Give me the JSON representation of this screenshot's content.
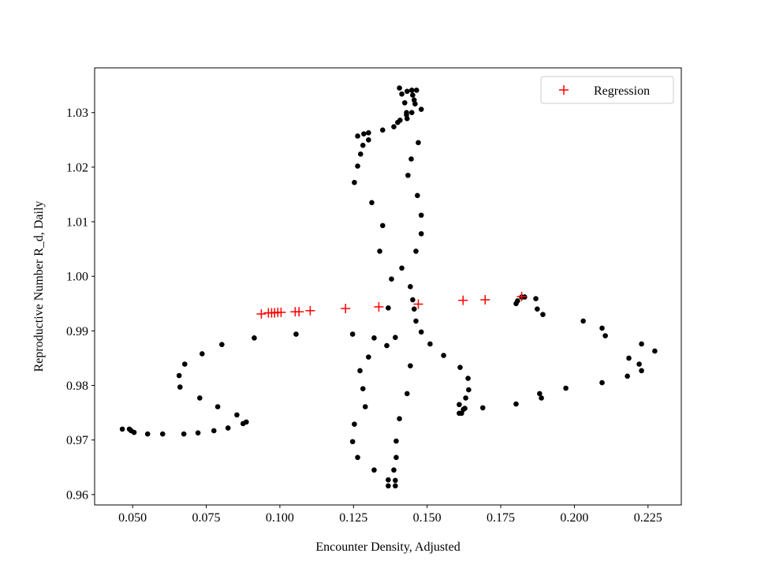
{
  "chart_data": {
    "type": "scatter",
    "xlabel": "Encounter Density, Adjusted",
    "ylabel": "Reproductive Number R_d, Daily",
    "xlim": [
      0.0371,
      0.2363
    ],
    "ylim": [
      0.9581,
      1.0382
    ],
    "xticks": [
      {
        "value": 0.05,
        "label": "0.050"
      },
      {
        "value": 0.075,
        "label": "0.075"
      },
      {
        "value": 0.1,
        "label": "0.100"
      },
      {
        "value": 0.125,
        "label": "0.125"
      },
      {
        "value": 0.15,
        "label": "0.150"
      },
      {
        "value": 0.175,
        "label": "0.175"
      },
      {
        "value": 0.2,
        "label": "0.200"
      },
      {
        "value": 0.225,
        "label": "0.225"
      }
    ],
    "yticks": [
      0.96,
      0.97,
      0.98,
      0.99,
      {
        "value": 1.0,
        "label": "1.00"
      },
      1.01,
      1.02,
      1.03
    ],
    "legend": "upper right",
    "series": [
      {
        "color": "#000000",
        "marker": "o",
        "x": [
          0.0465,
          0.0489,
          0.0495,
          0.0505,
          0.0551,
          0.0602,
          0.0674,
          0.0722,
          0.0776,
          0.0824,
          0.0875,
          0.0886,
          0.0854,
          0.0789,
          0.0728,
          0.0661,
          0.0658,
          0.0677,
          0.0736,
          0.0803,
          0.0913,
          0.1055,
          0.1247,
          0.132,
          0.1363,
          0.1301,
          0.1272,
          0.1282,
          0.129,
          0.1253,
          0.1247,
          0.1264,
          0.132,
          0.1368,
          0.1368,
          0.1392,
          0.1392,
          0.1387,
          0.1395,
          0.1395,
          0.1406,
          0.1432,
          0.1443,
          0.1392,
          0.1368,
          0.1414,
          0.1379,
          0.1451,
          0.1443,
          0.1456,
          0.1462,
          0.148,
          0.151,
          0.1556,
          0.1612,
          0.1639,
          0.1641,
          0.1631,
          0.1628,
          0.1617,
          0.1623,
          0.1609,
          0.1609,
          0.1689,
          0.1802,
          0.1888,
          0.1882,
          0.1971,
          0.2094,
          0.218,
          0.2185,
          0.222,
          0.2228,
          0.2228,
          0.2273,
          0.2105,
          0.2094,
          0.203,
          0.1893,
          0.1874,
          0.1869,
          0.1831,
          0.1821,
          0.1807,
          0.1802,
          0.1253,
          0.1264,
          0.1274,
          0.1282,
          0.1301,
          0.1285,
          0.1264,
          0.1301,
          0.1349,
          0.1387,
          0.14,
          0.1408,
          0.143,
          0.1432,
          0.143,
          0.1448,
          0.1424,
          0.1414,
          0.1406,
          0.1432,
          0.1448,
          0.1464,
          0.1451,
          0.1456,
          0.1459,
          0.148,
          0.147,
          0.1446,
          0.1435,
          0.1467,
          0.148,
          0.148,
          0.1462,
          0.1312,
          0.1349,
          0.1339
        ],
        "values": [
          0.972,
          0.972,
          0.9717,
          0.9714,
          0.9711,
          0.9711,
          0.9711,
          0.9713,
          0.9717,
          0.9722,
          0.973,
          0.9733,
          0.9746,
          0.9761,
          0.9777,
          0.9797,
          0.9818,
          0.9839,
          0.9858,
          0.9875,
          0.9887,
          0.9894,
          0.9894,
          0.9887,
          0.9873,
          0.9852,
          0.9827,
          0.9794,
          0.9761,
          0.9729,
          0.9697,
          0.9668,
          0.9645,
          0.9627,
          0.9616,
          0.9616,
          0.9626,
          0.9645,
          0.9668,
          0.9698,
          0.9739,
          0.9785,
          0.9836,
          0.9888,
          0.9942,
          1.0015,
          0.9995,
          0.9957,
          0.9981,
          0.994,
          0.9918,
          0.9898,
          0.9876,
          0.9855,
          0.9833,
          0.9813,
          0.9792,
          0.9777,
          0.9758,
          0.9749,
          0.9756,
          0.9765,
          0.9749,
          0.9759,
          0.9766,
          0.9777,
          0.9785,
          0.9795,
          0.9805,
          0.9817,
          0.985,
          0.9839,
          0.9827,
          0.9876,
          0.9863,
          0.9891,
          0.9905,
          0.9918,
          0.993,
          0.994,
          0.9959,
          0.9962,
          0.9962,
          0.9955,
          0.995,
          1.0172,
          1.0202,
          1.0224,
          1.024,
          1.025,
          1.0261,
          1.0257,
          1.0263,
          1.0268,
          1.0274,
          1.0282,
          1.0286,
          1.0296,
          1.0289,
          1.03,
          1.03,
          1.0318,
          1.0334,
          1.0345,
          1.0339,
          1.0341,
          1.0341,
          1.0332,
          1.0323,
          1.0316,
          1.0306,
          1.0245,
          1.0215,
          1.0185,
          1.0148,
          1.0112,
          1.0078,
          1.0046,
          1.0135,
          1.0093,
          1.0046
        ]
      },
      {
        "name": "Regression",
        "color": "#ff0000",
        "marker": "+",
        "x": [
          0.0937,
          0.0961,
          0.0972,
          0.0982,
          0.0993,
          0.1004,
          0.1052,
          0.1065,
          0.1103,
          0.1223,
          0.1336,
          0.147,
          0.1622,
          0.1697,
          0.1821
        ],
        "values": [
          0.9931,
          0.9933,
          0.9933,
          0.9933,
          0.9934,
          0.9934,
          0.9935,
          0.9935,
          0.9937,
          0.9941,
          0.9944,
          0.9949,
          0.9956,
          0.9957,
          0.9963
        ]
      }
    ]
  }
}
